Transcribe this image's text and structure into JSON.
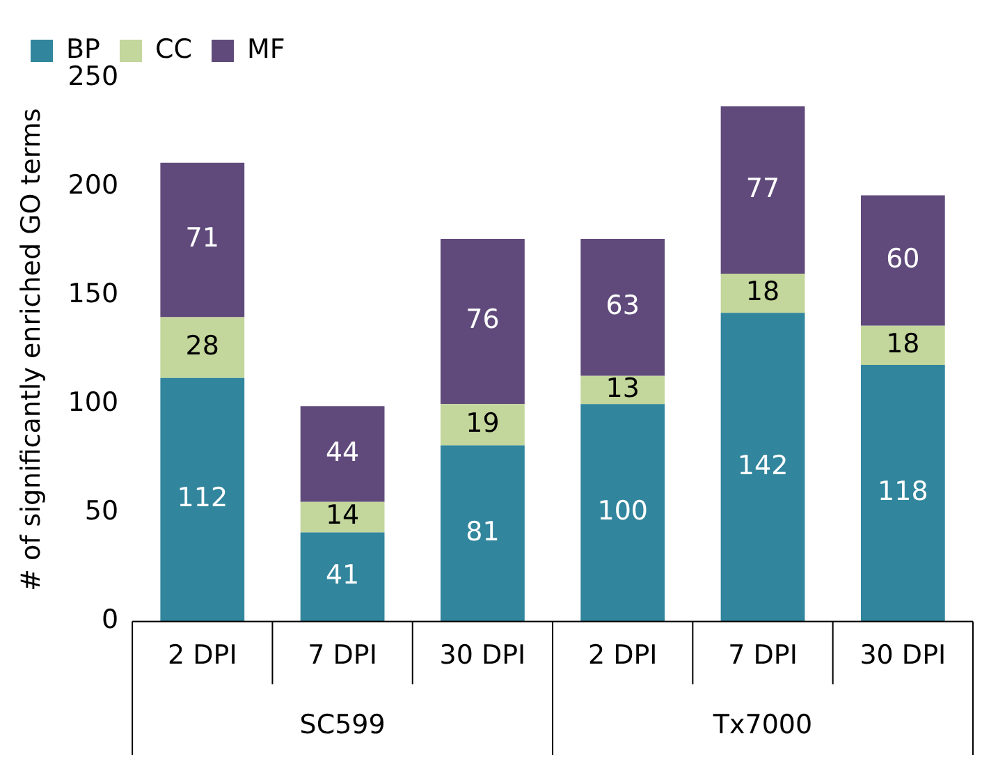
{
  "chart_data": {
    "type": "bar",
    "stacked": true,
    "ylabel": "# of significantly enriched GO terms",
    "categories": [
      "2 DPI",
      "7 DPI",
      "30 DPI",
      "2 DPI",
      "7 DPI",
      "30 DPI"
    ],
    "series": [
      {
        "name": "BP",
        "color": "#31859c",
        "values": [
          112,
          41,
          81,
          100,
          142,
          118
        ]
      },
      {
        "name": "CC",
        "color": "#c3d69b",
        "values": [
          28,
          14,
          19,
          13,
          18,
          18
        ]
      },
      {
        "name": "MF",
        "color": "#604a7b",
        "values": [
          71,
          44,
          76,
          63,
          77,
          60
        ]
      }
    ],
    "ylim": [
      0,
      250
    ],
    "yticks": [
      0,
      50,
      100,
      150,
      200,
      250
    ],
    "grid": false,
    "legend": "top left",
    "data_labels": true,
    "annotations": [
      "SC599",
      "Tx7000"
    ]
  }
}
